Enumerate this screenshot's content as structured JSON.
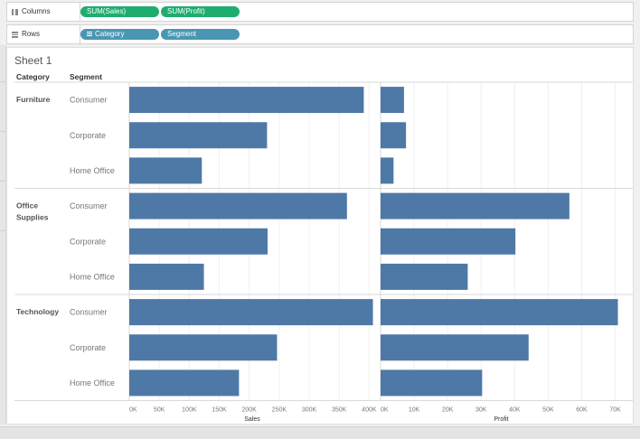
{
  "shelves": {
    "columns": {
      "label": "Columns",
      "pills": [
        "SUM(Sales)",
        "SUM(Profit)"
      ]
    },
    "rows": {
      "label": "Rows",
      "pills": [
        "Category",
        "Segment"
      ]
    }
  },
  "sheet": {
    "title": "Sheet 1",
    "headers": {
      "category": "Category",
      "segment": "Segment"
    }
  },
  "colors": {
    "bar": "#4e79a7",
    "measure_pill": "#1ead6f",
    "dimension_pill": "#4996b2"
  },
  "chart_data": {
    "type": "bar",
    "orientation": "horizontal",
    "title": "Sheet 1",
    "groups": [
      {
        "category": "Furniture",
        "segments": [
          "Consumer",
          "Corporate",
          "Home Office"
        ]
      },
      {
        "category": "Office Supplies",
        "segments": [
          "Consumer",
          "Corporate",
          "Home Office"
        ]
      },
      {
        "category": "Technology",
        "segments": [
          "Consumer",
          "Corporate",
          "Home Office"
        ]
      }
    ],
    "series": [
      {
        "name": "Sales",
        "xlabel": "Sales",
        "values": [
          391049,
          229758,
          121000,
          363001,
          230676,
          124418,
          406312,
          246450,
          183000
        ],
        "xlim": [
          0,
          410000
        ],
        "ticks": [
          0,
          50000,
          100000,
          150000,
          200000,
          250000,
          300000,
          350000,
          400000
        ],
        "tick_labels": [
          "0K",
          "50K",
          "100K",
          "150K",
          "200K",
          "250K",
          "300K",
          "350K",
          "400K"
        ]
      },
      {
        "name": "Profit",
        "xlabel": "Profit",
        "values": [
          6991,
          7584,
          3875,
          56330,
          40227,
          26000,
          70797,
          44167,
          30300
        ],
        "xlim": [
          0,
          72000
        ],
        "ticks": [
          0,
          10000,
          20000,
          30000,
          40000,
          50000,
          60000,
          70000
        ],
        "tick_labels": [
          "0K",
          "10K",
          "20K",
          "30K",
          "40K",
          "50K",
          "60K",
          "70K"
        ]
      }
    ]
  }
}
